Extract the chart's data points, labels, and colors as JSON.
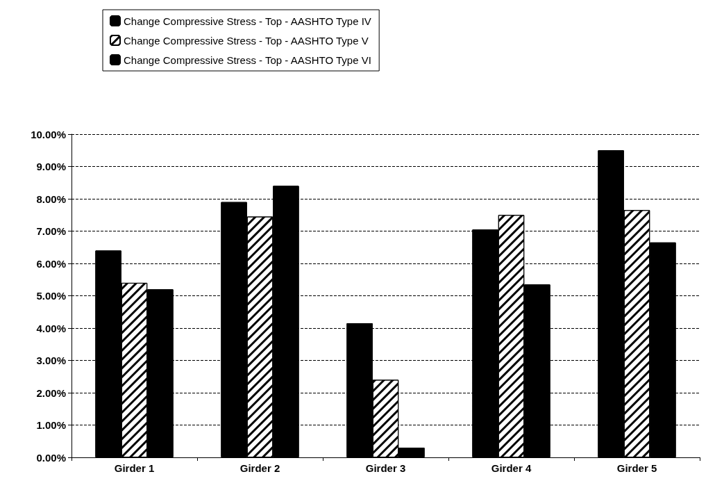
{
  "chart_data": {
    "type": "bar",
    "categories": [
      "Girder 1",
      "Girder 2",
      "Girder 3",
      "Girder 4",
      "Girder 5"
    ],
    "series": [
      {
        "name": "Change Compressive Stress - Top - AASHTO Type IV",
        "color": "#000000",
        "values": [
          6.4,
          7.9,
          4.15,
          7.05,
          9.5
        ]
      },
      {
        "name": "Change Compressive Stress - Top - AASHTO Type V",
        "color": "#ffffff",
        "values": [
          5.4,
          7.45,
          2.4,
          7.5,
          7.65
        ]
      },
      {
        "name": "Change Compressive Stress - Top - AASHTO Type VI",
        "color": "#000000",
        "values": [
          5.2,
          8.4,
          0.3,
          5.35,
          6.65
        ]
      }
    ],
    "ylim": [
      0,
      10
    ],
    "yticks": [
      {
        "value": 0,
        "label": "0.00%"
      },
      {
        "value": 1,
        "label": "1.00%"
      },
      {
        "value": 2,
        "label": "2.00%"
      },
      {
        "value": 3,
        "label": "3.00%"
      },
      {
        "value": 4,
        "label": "4.00%"
      },
      {
        "value": 5,
        "label": "5.00%"
      },
      {
        "value": 6,
        "label": "6.00%"
      },
      {
        "value": 7,
        "label": "7.00%"
      },
      {
        "value": 8,
        "label": "8.00%"
      },
      {
        "value": 9,
        "label": "9.00%"
      },
      {
        "value": 10,
        "label": "10.00%"
      }
    ],
    "grid": "y",
    "legend": "top left"
  }
}
